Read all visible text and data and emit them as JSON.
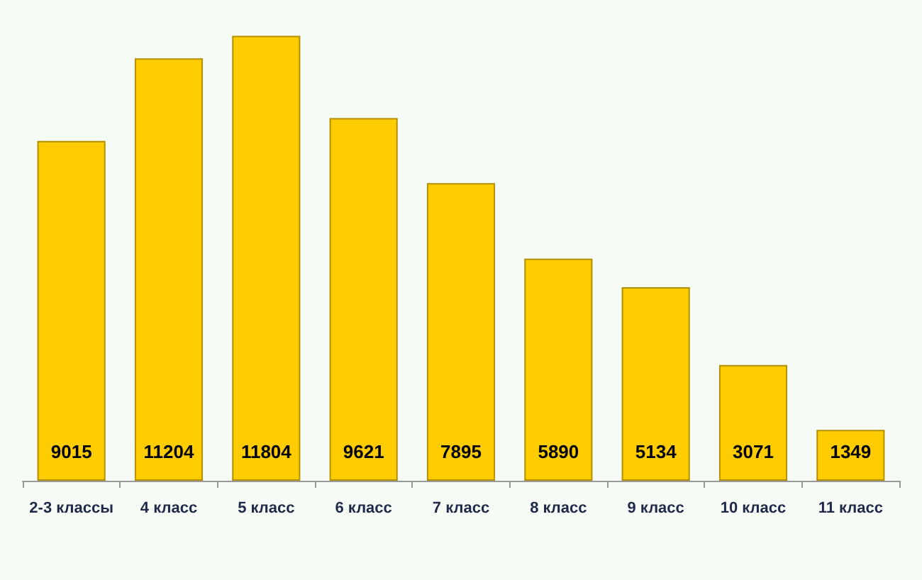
{
  "chart_data": {
    "type": "bar",
    "categories": [
      "2-3 классы",
      "4 класс",
      "5 класс",
      "6 класс",
      "7 класс",
      "8 класс",
      "9 класс",
      "10 класс",
      "11 класс"
    ],
    "values": [
      9015,
      11204,
      11804,
      9621,
      7895,
      5890,
      5134,
      3071,
      1349
    ],
    "color": "#ffcc00",
    "data_labels": true
  }
}
